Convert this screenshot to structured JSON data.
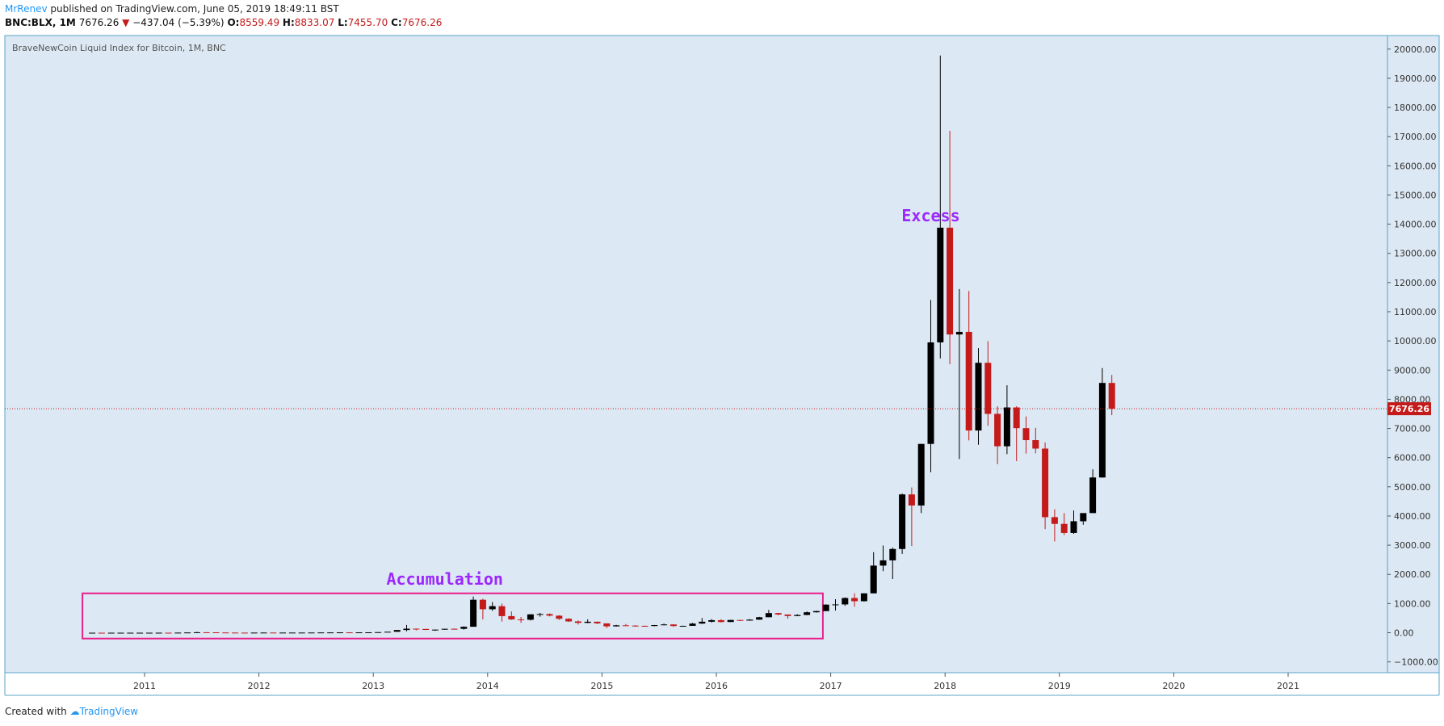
{
  "header": {
    "author": "MrRenev",
    "published_text": " published on TradingView.com, June 05, 2019 18:49:11 BST",
    "symbol": "BNC:BLX, 1M",
    "last_price": "7676.26",
    "change_arrow": "▼",
    "change": "−437.04 (−5.39%)",
    "open_label": "O:",
    "open_value": "8559.49",
    "high_label": "H:",
    "high_value": "8833.07",
    "low_label": "L:",
    "low_value": "7455.70",
    "close_label": "C:",
    "close_value": "7676.26"
  },
  "footer": {
    "created_with": "Created with",
    "brand": "TradingView"
  },
  "chart_data": {
    "type": "candlestick",
    "title": "BraveNewCoin Liquid Index for Bitcoin, 1M, BNC",
    "ylim": [
      -1500,
      21000
    ],
    "y_ticks": [
      -1000,
      0,
      1000,
      2000,
      3000,
      4000,
      5000,
      6000,
      7000,
      8000,
      9000,
      10000,
      11000,
      12000,
      13000,
      14000,
      15000,
      16000,
      17000,
      18000,
      19000,
      20000
    ],
    "y_tick_labels": [
      "−1000.00",
      "0.00",
      "1000.00",
      "2000.00",
      "3000.00",
      "4000.00",
      "5000.00",
      "6000.00",
      "7000.00",
      "8000.00",
      "9000.00",
      "10000.00",
      "11000.00",
      "12000.00",
      "13000.00",
      "14000.00",
      "15000.00",
      "16000.00",
      "17000.00",
      "18000.00",
      "19000.00",
      "20000.00"
    ],
    "x_ticks": [
      "2011",
      "2012",
      "2013",
      "2014",
      "2015",
      "2016",
      "2017",
      "2018",
      "2019",
      "2020",
      "2021"
    ],
    "x_range": [
      "2010-06",
      "2021-11"
    ],
    "last_price": 7676.26,
    "last_price_label": "7676.26",
    "up_color": "#000000",
    "down_color": "#c41a1a",
    "background": "#dce8f3",
    "annotations": [
      {
        "text": "Excess",
        "color": "#9c27ff",
        "at": [
          "2017-11",
          14100
        ]
      },
      {
        "text": "Accumulation",
        "color": "#9c27ff",
        "at": [
          "2013-08",
          1650
        ]
      }
    ],
    "box": {
      "from": "2010-07",
      "to": "2016-11",
      "low": -200,
      "high": 1350,
      "color": "#e91e8c"
    },
    "candles": [
      [
        "2010-07",
        0.06,
        0.08,
        0.05,
        0.07
      ],
      [
        "2010-08",
        0.07,
        0.08,
        0.06,
        0.06
      ],
      [
        "2010-09",
        0.06,
        0.2,
        0.06,
        0.06
      ],
      [
        "2010-10",
        0.06,
        0.2,
        0.06,
        0.19
      ],
      [
        "2010-11",
        0.19,
        0.5,
        0.19,
        0.21
      ],
      [
        "2010-12",
        0.21,
        0.3,
        0.2,
        0.3
      ],
      [
        "2011-01",
        0.3,
        0.95,
        0.3,
        0.52
      ],
      [
        "2011-02",
        0.52,
        1.1,
        0.52,
        0.86
      ],
      [
        "2011-03",
        0.86,
        0.95,
        0.7,
        0.78
      ],
      [
        "2011-04",
        0.78,
        3.5,
        0.75,
        3.5
      ],
      [
        "2011-05",
        3.5,
        9,
        3,
        8.7
      ],
      [
        "2011-06",
        8.7,
        31,
        8,
        16
      ],
      [
        "2011-07",
        16,
        17,
        12,
        13.5
      ],
      [
        "2011-08",
        13.5,
        14,
        8,
        8.2
      ],
      [
        "2011-09",
        8.2,
        9,
        4.5,
        5.1
      ],
      [
        "2011-10",
        5.1,
        5.3,
        2.3,
        3.2
      ],
      [
        "2011-11",
        3.2,
        3.5,
        2,
        3
      ],
      [
        "2011-12",
        3,
        4.8,
        2.8,
        4.7
      ],
      [
        "2012-01",
        4.7,
        7.2,
        4.5,
        5.5
      ],
      [
        "2012-02",
        5.5,
        6.3,
        4.2,
        4.9
      ],
      [
        "2012-03",
        4.9,
        5.4,
        4.6,
        4.9
      ],
      [
        "2012-04",
        4.9,
        5.3,
        4.7,
        5
      ],
      [
        "2012-05",
        5,
        5.2,
        4.9,
        5.2
      ],
      [
        "2012-06",
        5.2,
        6.7,
        5.2,
        6.7
      ],
      [
        "2012-07",
        6.7,
        9.6,
        6.5,
        9.4
      ],
      [
        "2012-08",
        9.4,
        16,
        7.9,
        10.1
      ],
      [
        "2012-09",
        10.1,
        12.5,
        10,
        12.4
      ],
      [
        "2012-10",
        12.4,
        12.8,
        10.5,
        11.2
      ],
      [
        "2012-11",
        11.2,
        12.9,
        10.6,
        12.6
      ],
      [
        "2012-12",
        12.6,
        13.8,
        12.6,
        13.5
      ],
      [
        "2013-01",
        13.5,
        20.5,
        13.2,
        20.4
      ],
      [
        "2013-02",
        20.4,
        33,
        19.5,
        33.4
      ],
      [
        "2013-03",
        33.4,
        95,
        33,
        93
      ],
      [
        "2013-04",
        93,
        266,
        50,
        139
      ],
      [
        "2013-05",
        139,
        141,
        80,
        129
      ],
      [
        "2013-06",
        129,
        130,
        88,
        97
      ],
      [
        "2013-07",
        97,
        112,
        65,
        106
      ],
      [
        "2013-08",
        106,
        136,
        100,
        135
      ],
      [
        "2013-09",
        135,
        146,
        120,
        133
      ],
      [
        "2013-10",
        133,
        215,
        105,
        204
      ],
      [
        "2013-11",
        204,
        1242,
        205,
        1130
      ],
      [
        "2013-12",
        1130,
        1165,
        455,
        805
      ],
      [
        "2014-01",
        805,
        1050,
        750,
        910
      ],
      [
        "2014-02",
        910,
        1000,
        380,
        570
      ],
      [
        "2014-03",
        570,
        730,
        440,
        455
      ],
      [
        "2014-04",
        455,
        540,
        340,
        445
      ],
      [
        "2014-05",
        445,
        635,
        420,
        630
      ],
      [
        "2014-06",
        630,
        680,
        550,
        640
      ],
      [
        "2014-07",
        640,
        660,
        560,
        585
      ],
      [
        "2014-08",
        585,
        600,
        440,
        478
      ],
      [
        "2014-09",
        478,
        495,
        370,
        388
      ],
      [
        "2014-10",
        388,
        420,
        280,
        338
      ],
      [
        "2014-11",
        338,
        460,
        325,
        377
      ],
      [
        "2014-12",
        377,
        380,
        300,
        320
      ],
      [
        "2015-01",
        320,
        320,
        160,
        218
      ],
      [
        "2015-02",
        218,
        270,
        213,
        254
      ],
      [
        "2015-03",
        254,
        300,
        240,
        244
      ],
      [
        "2015-04",
        244,
        262,
        213,
        236
      ],
      [
        "2015-05",
        236,
        246,
        226,
        230
      ],
      [
        "2015-06",
        230,
        265,
        222,
        263
      ],
      [
        "2015-07",
        263,
        315,
        254,
        284
      ],
      [
        "2015-08",
        284,
        285,
        200,
        230
      ],
      [
        "2015-09",
        230,
        243,
        225,
        236
      ],
      [
        "2015-10",
        236,
        335,
        235,
        314
      ],
      [
        "2015-11",
        314,
        503,
        300,
        377
      ],
      [
        "2015-12",
        377,
        467,
        350,
        430
      ],
      [
        "2016-01",
        430,
        465,
        350,
        368
      ],
      [
        "2016-02",
        368,
        440,
        366,
        437
      ],
      [
        "2016-03",
        437,
        440,
        400,
        416
      ],
      [
        "2016-04",
        416,
        467,
        415,
        448
      ],
      [
        "2016-05",
        448,
        545,
        442,
        531
      ],
      [
        "2016-06",
        531,
        780,
        530,
        673
      ],
      [
        "2016-07",
        673,
        680,
        600,
        624
      ],
      [
        "2016-08",
        624,
        625,
        480,
        573
      ],
      [
        "2016-09",
        573,
        630,
        570,
        609
      ],
      [
        "2016-10",
        609,
        730,
        600,
        700
      ],
      [
        "2016-11",
        700,
        755,
        690,
        742
      ],
      [
        "2016-12",
        742,
        975,
        740,
        963
      ],
      [
        "2017-01",
        963,
        1150,
        760,
        970
      ],
      [
        "2017-02",
        970,
        1210,
        920,
        1190
      ],
      [
        "2017-03",
        1190,
        1350,
        890,
        1080
      ],
      [
        "2017-04",
        1080,
        1350,
        1070,
        1350
      ],
      [
        "2017-05",
        1350,
        2760,
        1350,
        2300
      ],
      [
        "2017-06",
        2300,
        2990,
        2110,
        2480
      ],
      [
        "2017-07",
        2480,
        2920,
        1840,
        2870
      ],
      [
        "2017-08",
        2870,
        4770,
        2700,
        4740
      ],
      [
        "2017-09",
        4740,
        4980,
        2970,
        4360
      ],
      [
        "2017-10",
        4360,
        6470,
        4100,
        6470
      ],
      [
        "2017-11",
        6470,
        11400,
        5500,
        9950
      ],
      [
        "2017-12",
        9950,
        19780,
        9400,
        13880
      ],
      [
        "2018-01",
        13880,
        17200,
        9200,
        10220
      ],
      [
        "2018-02",
        10220,
        11780,
        5950,
        10310
      ],
      [
        "2018-03",
        10310,
        11710,
        6590,
        6930
      ],
      [
        "2018-04",
        6930,
        9750,
        6440,
        9250
      ],
      [
        "2018-05",
        9250,
        9990,
        7090,
        7500
      ],
      [
        "2018-06",
        7500,
        7760,
        5780,
        6390
      ],
      [
        "2018-07",
        6390,
        8480,
        6120,
        7720
      ],
      [
        "2018-08",
        7720,
        7760,
        5880,
        7010
      ],
      [
        "2018-09",
        7010,
        7410,
        6140,
        6600
      ],
      [
        "2018-10",
        6600,
        7020,
        6150,
        6310
      ],
      [
        "2018-11",
        6310,
        6520,
        3550,
        3960
      ],
      [
        "2018-12",
        3960,
        4230,
        3130,
        3730
      ],
      [
        "2019-01",
        3730,
        4100,
        3350,
        3420
      ],
      [
        "2019-02",
        3420,
        4190,
        3390,
        3820
      ],
      [
        "2019-03",
        3820,
        4090,
        3700,
        4100
      ],
      [
        "2019-04",
        4100,
        5600,
        4100,
        5320
      ],
      [
        "2019-05",
        5320,
        9070,
        5310,
        8560
      ],
      [
        "2019-06",
        8559.49,
        8833.07,
        7455.7,
        7676.26
      ]
    ]
  }
}
